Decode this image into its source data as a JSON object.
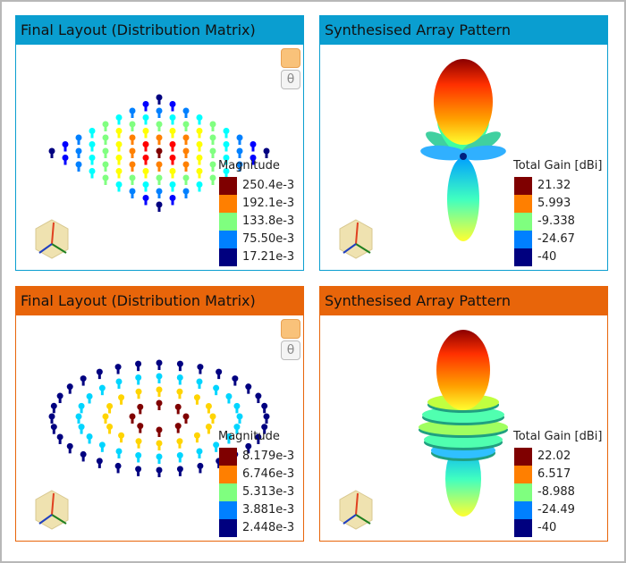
{
  "panels": [
    {
      "title": "Final Layout (Distribution Matrix)",
      "legend": {
        "title": "Magnitude",
        "labels": [
          "250.4e-3",
          "192.1e-3",
          "133.8e-3",
          "75.50e-3",
          "17.21e-3"
        ]
      }
    },
    {
      "title": "Synthesised Array Pattern",
      "legend": {
        "title": "Total Gain [dBi]",
        "labels": [
          "21.32",
          "5.993",
          "-9.338",
          "-24.67",
          "-40"
        ]
      }
    },
    {
      "title": "Final Layout (Distribution Matrix)",
      "legend": {
        "title": "Magnitude",
        "labels": [
          "8.179e-3",
          "6.746e-3",
          "5.313e-3",
          "3.881e-3",
          "2.448e-3"
        ]
      }
    },
    {
      "title": "Synthesised Array Pattern",
      "legend": {
        "title": "Total Gain [dBi]",
        "labels": [
          "22.02",
          "6.517",
          "-8.988",
          "-24.49",
          "-40"
        ]
      }
    }
  ]
}
